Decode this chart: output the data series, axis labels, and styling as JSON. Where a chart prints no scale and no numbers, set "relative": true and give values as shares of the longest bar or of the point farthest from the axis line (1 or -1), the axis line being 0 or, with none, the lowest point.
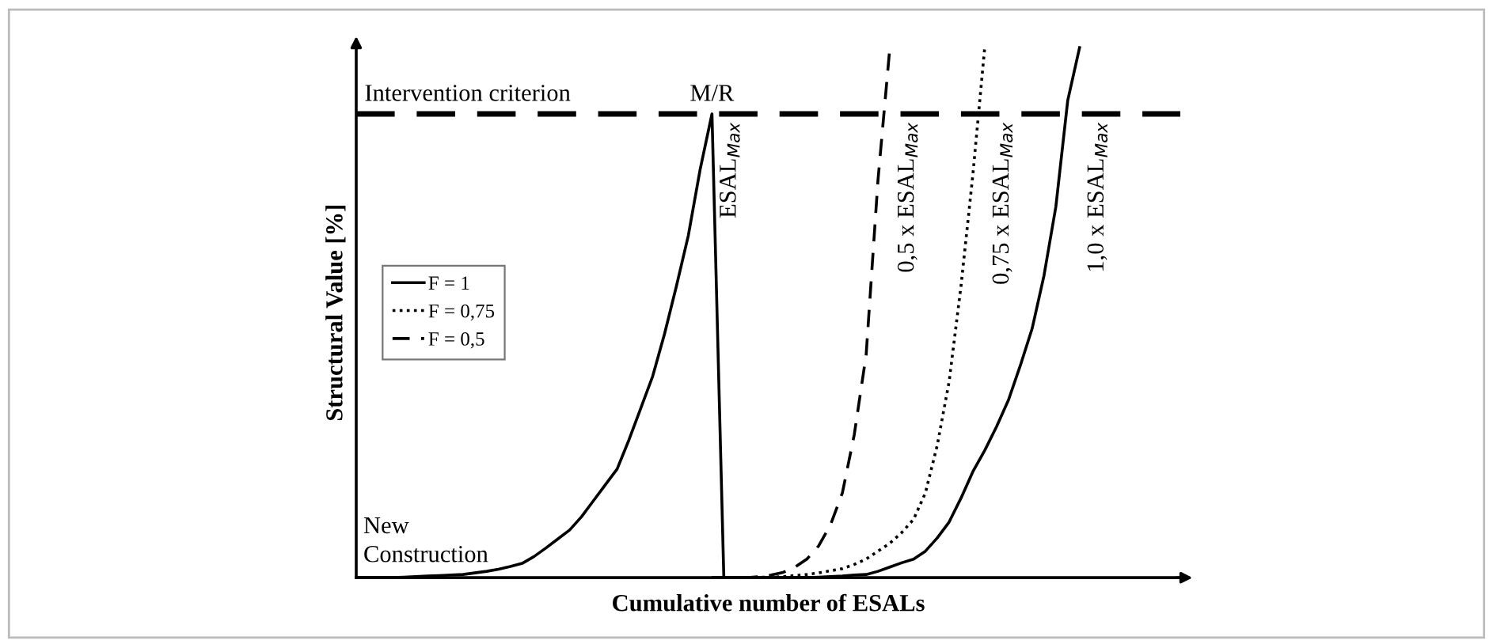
{
  "chart_data": {
    "type": "line",
    "relative": true,
    "xlabel": "Cumulative number of ESALs",
    "ylabel": "Structural Value [%]",
    "categories": [
      null,
      null,
      null,
      null,
      null,
      null,
      null,
      null,
      null,
      null,
      null,
      null,
      null,
      null,
      null,
      null,
      null,
      null,
      null,
      null,
      null,
      null,
      null,
      null,
      null,
      null,
      null,
      null,
      null,
      null,
      null,
      null,
      null,
      null,
      null,
      null,
      null,
      null,
      null,
      null,
      null,
      null,
      null,
      null,
      null,
      null,
      null,
      null,
      null,
      null,
      null,
      null,
      null,
      null,
      null,
      null,
      null,
      null,
      null,
      null,
      null,
      null,
      null,
      null,
      null,
      null,
      null,
      null,
      null,
      null
    ],
    "legend": "center left",
    "series": [
      {
        "name": "F = 1",
        "color": "#000000",
        "line_style": "solid",
        "values": [
          0,
          0,
          0,
          0,
          0.001,
          0.002,
          0.003,
          0.004,
          0.005,
          0.006,
          0.009,
          0.012,
          0.016,
          0.021,
          0.027,
          0.04,
          0.056,
          0.073,
          0.09,
          0.115,
          0.145,
          0.175,
          0.205,
          0.26,
          0.32,
          0.38,
          0.46,
          0.55,
          0.645,
          0.77,
          0.875,
          0,
          0,
          0,
          0,
          0,
          0,
          0,
          0,
          0.001,
          0.002,
          0.003,
          0.005,
          0.006,
          0.012,
          0.02,
          0.028,
          0.035,
          0.05,
          0.075,
          0.105,
          0.15,
          0.2,
          0.24,
          0.285,
          0.335,
          0.4,
          0.47,
          0.57,
          0.7,
          0.9,
          1.0,
          null,
          null,
          null,
          null,
          null,
          null,
          null,
          null
        ]
      },
      {
        "name": "F = 0,75",
        "color": "#000000",
        "line_style": "dotted",
        "values": [
          null,
          null,
          null,
          null,
          null,
          null,
          null,
          null,
          null,
          null,
          null,
          null,
          null,
          null,
          null,
          null,
          null,
          null,
          null,
          null,
          null,
          null,
          null,
          null,
          null,
          null,
          null,
          null,
          null,
          null,
          0,
          0,
          0,
          0,
          0.001,
          0.001,
          0.002,
          0.004,
          0.006,
          0.009,
          0.013,
          0.017,
          0.025,
          0.035,
          0.05,
          0.065,
          0.085,
          0.11,
          0.16,
          0.25,
          0.37,
          0.55,
          0.76,
          1.0,
          null,
          null,
          null,
          null,
          null,
          null,
          null,
          null,
          null,
          null,
          null,
          null,
          null,
          null,
          null,
          null
        ]
      },
      {
        "name": "F = 0,5",
        "color": "#000000",
        "line_style": "dashed",
        "values": [
          null,
          null,
          null,
          null,
          null,
          null,
          null,
          null,
          null,
          null,
          null,
          null,
          null,
          null,
          null,
          null,
          null,
          null,
          null,
          null,
          null,
          null,
          null,
          null,
          null,
          null,
          null,
          null,
          null,
          null,
          0,
          0,
          0,
          0,
          0.002,
          0.005,
          0.01,
          0.02,
          0.035,
          0.06,
          0.1,
          0.16,
          0.27,
          0.42,
          0.75,
          1.0,
          null,
          null,
          null,
          null,
          null,
          null,
          null,
          null,
          null,
          null,
          null,
          null,
          null,
          null,
          null,
          null,
          null,
          null,
          null,
          null,
          null,
          null,
          null,
          null
        ]
      }
    ],
    "ref_lines": [
      {
        "axis": "y",
        "value": 0.875,
        "label": "Intervention criterion",
        "color": "#000000",
        "line_style": "dashed"
      }
    ],
    "annotations": [
      "M/R",
      "ESAL$_{Max}$",
      "0,5 x ESAL$_{Max}$",
      "0,75 x ESAL$_{Max}$",
      "1,0 x ESAL$_{Max}$",
      "New\nConstruction"
    ]
  }
}
